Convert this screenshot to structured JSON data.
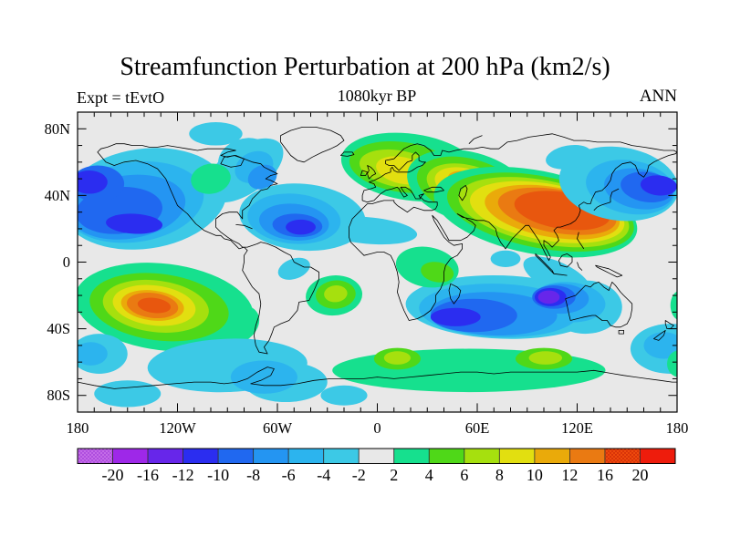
{
  "header": {
    "title": "Streamfunction Perturbation at 200 hPa (km2/s)",
    "subtitle": "1080kyr BP",
    "left_label": "Expt = tEvtO",
    "right_label": "ANN"
  },
  "chart_data": {
    "type": "heatmap",
    "subtype": "filled-contour world map",
    "title": "Streamfunction Perturbation at 200 hPa (km2/s)",
    "subtitle": "1080kyr BP",
    "annotations": {
      "experiment": "Expt = tEvtO",
      "season": "ANN"
    },
    "units": "km2/s",
    "lon_axis": {
      "range": [
        -180,
        180
      ],
      "tick_values": [
        -180,
        -120,
        -60,
        0,
        60,
        120,
        180
      ],
      "tick_labels": [
        "180",
        "120W",
        "60W",
        "0",
        "60E",
        "120E",
        "180"
      ],
      "minor_step": 10
    },
    "lat_axis": {
      "range": [
        -90,
        90
      ],
      "tick_values": [
        80,
        40,
        0,
        -40,
        -80
      ],
      "tick_labels": [
        "80N",
        "40N",
        "0",
        "40S",
        "80S"
      ],
      "minor_step": 10
    },
    "colorbar": {
      "levels": [
        -20,
        -16,
        -12,
        -10,
        -8,
        -6,
        -4,
        -2,
        2,
        4,
        6,
        8,
        10,
        12,
        16,
        20
      ],
      "labels": [
        "-20",
        "-16",
        "-12",
        "-10",
        "-8",
        "-6",
        "-4",
        "-2",
        "2",
        "4",
        "6",
        "8",
        "10",
        "12",
        "16",
        "20"
      ],
      "colors": [
        "#c46ce8",
        "#9e28e8",
        "#6726ea",
        "#2b2df0",
        "#2068f0",
        "#2495f2",
        "#2cb4ee",
        "#3cc9e6",
        "#e8e8e8",
        "#16e08e",
        "#4fd818",
        "#a6e00e",
        "#e2df10",
        "#eaaa0a",
        "#ea7a12",
        "#ee4a0c",
        "#ee1c0c"
      ],
      "hatched_segment_indices": [
        0,
        15
      ],
      "hatch_dot_colors": [
        "#8f22d0",
        "#b81004"
      ],
      "map_core_color": "#e8570e",
      "background_level_color": "#e8e8e8"
    },
    "anomaly_centers": [
      {
        "region": "North Pacific",
        "lon": -150,
        "lat": 33,
        "sign": "negative",
        "approx_extreme": -12
      },
      {
        "region": "Subtropical North Atlantic",
        "lon": -47,
        "lat": 22,
        "sign": "negative",
        "approx_extreme": -12
      },
      {
        "region": "Central Canada",
        "lon": -100,
        "lat": 50,
        "sign": "positive",
        "approx_extreme": 4
      },
      {
        "region": "Northern Europe",
        "lon": 15,
        "lat": 56,
        "sign": "positive",
        "approx_extreme": 10
      },
      {
        "region": "Central and East Asia",
        "lon": 111,
        "lat": 31,
        "sign": "positive",
        "approx_extreme": 18
      },
      {
        "region": "Northwest Pacific",
        "lon": 168,
        "lat": 45,
        "sign": "negative",
        "approx_extreme": -12
      },
      {
        "region": "Equatorial Africa",
        "lon": 35,
        "lat": -5,
        "sign": "positive",
        "approx_extreme": 6
      },
      {
        "region": "Southwest Indian Ocean",
        "lon": 48,
        "lat": -33,
        "sign": "negative",
        "approx_extreme": -12
      },
      {
        "region": "West of Australia",
        "lon": 103,
        "lat": -21,
        "sign": "negative",
        "approx_extreme": -14
      },
      {
        "region": "South Pacific",
        "lon": -133,
        "lat": -26,
        "sign": "positive",
        "approx_extreme": 18
      },
      {
        "region": "South Atlantic",
        "lon": -25,
        "lat": -19,
        "sign": "positive",
        "approx_extreme": 8
      },
      {
        "region": "Antarctic circumpolar band",
        "lon": 55,
        "lat": -62,
        "sign": "positive",
        "approx_extreme": 8
      }
    ],
    "field_blobs": [
      [
        -140,
        38,
        50,
        30,
        -8,
        7
      ],
      [
        -80,
        55,
        27,
        14,
        -35,
        7
      ],
      [
        -146,
        36,
        42,
        24,
        -8,
        6
      ],
      [
        -150,
        33,
        35,
        19,
        -8,
        5
      ],
      [
        -155,
        31,
        26,
        14,
        -5,
        4
      ],
      [
        -168,
        47,
        16,
        11,
        0,
        4
      ],
      [
        -146,
        23,
        17,
        6,
        3,
        3
      ],
      [
        -173,
        48,
        11,
        7,
        0,
        3
      ],
      [
        -80,
        62,
        16,
        12,
        -20,
        7
      ],
      [
        -74,
        57,
        12,
        9,
        -25,
        6
      ],
      [
        -69,
        51,
        9,
        7,
        -25,
        5
      ],
      [
        -97,
        77,
        16,
        7,
        0,
        7
      ],
      [
        -45,
        27,
        38,
        20,
        5,
        7
      ],
      [
        -6,
        19,
        30,
        8,
        5,
        7
      ],
      [
        -50,
        26,
        28,
        15,
        5,
        6
      ],
      [
        -50,
        24,
        21,
        11,
        5,
        5
      ],
      [
        -48,
        22,
        15,
        7,
        3,
        4
      ],
      [
        -46,
        21,
        9,
        4.5,
        0,
        3
      ],
      [
        -100,
        50,
        12,
        9,
        -10,
        9
      ],
      [
        20,
        57,
        42,
        20,
        8,
        9
      ],
      [
        15,
        57,
        32,
        15,
        8,
        10
      ],
      [
        13,
        56,
        24,
        11,
        10,
        11
      ],
      [
        15,
        55,
        16,
        8,
        12,
        12
      ],
      [
        55,
        45,
        38,
        21,
        15,
        9
      ],
      [
        55,
        45,
        32,
        17,
        15,
        10
      ],
      [
        55,
        45,
        26,
        13,
        15,
        11
      ],
      [
        54,
        46,
        20,
        10,
        15,
        12
      ],
      [
        55,
        48,
        13,
        6,
        15,
        13
      ],
      [
        95,
        30,
        62,
        25,
        11,
        9
      ],
      [
        98,
        30,
        57,
        21.5,
        11,
        10
      ],
      [
        100,
        30,
        52,
        19,
        11,
        11
      ],
      [
        102,
        30,
        47,
        17,
        10,
        12
      ],
      [
        105,
        30,
        41,
        15,
        10,
        13
      ],
      [
        108,
        30.5,
        36,
        13,
        10,
        14
      ],
      [
        111,
        31,
        29,
        11,
        9,
        15
      ],
      [
        145,
        47,
        36,
        22,
        8,
        7
      ],
      [
        115,
        63,
        14,
        7,
        -10,
        7
      ],
      [
        152,
        45,
        27,
        16,
        10,
        6
      ],
      [
        157,
        44,
        21,
        12,
        10,
        5
      ],
      [
        162,
        45,
        16,
        9,
        8,
        4
      ],
      [
        169,
        46,
        11,
        6,
        5,
        3
      ],
      [
        75,
        -27,
        58,
        19,
        2,
        7
      ],
      [
        125,
        -27,
        22,
        16,
        0,
        7
      ],
      [
        108,
        -9,
        22,
        9,
        25,
        7
      ],
      [
        73,
        -29,
        48,
        16,
        2,
        6
      ],
      [
        115,
        -24,
        22,
        12,
        5,
        6
      ],
      [
        70,
        -31,
        38,
        13,
        2,
        5
      ],
      [
        110,
        -22,
        17,
        9,
        0,
        5
      ],
      [
        58,
        -32,
        26,
        10,
        0,
        4
      ],
      [
        106,
        -21,
        13,
        7,
        0,
        4
      ],
      [
        47,
        -33,
        15,
        5.5,
        0,
        3
      ],
      [
        104,
        -21,
        9.5,
        5.5,
        0,
        3
      ],
      [
        103,
        -21,
        6.5,
        4,
        0,
        2
      ],
      [
        30,
        -3,
        19,
        12,
        10,
        9
      ],
      [
        36,
        -6,
        10,
        6,
        10,
        10
      ],
      [
        77,
        2,
        9,
        5,
        0,
        7
      ],
      [
        -128,
        -27,
        54,
        26,
        7,
        9
      ],
      [
        -85,
        -38,
        15,
        11,
        -30,
        9
      ],
      [
        -131,
        -27,
        42,
        20,
        7,
        10
      ],
      [
        -133,
        -26.5,
        32,
        15.5,
        7,
        11
      ],
      [
        -134,
        -26,
        25,
        12,
        7,
        12
      ],
      [
        -135,
        -26,
        19,
        9,
        7,
        13
      ],
      [
        -135,
        -26,
        15.5,
        7.5,
        7,
        14
      ],
      [
        -134,
        -26,
        10,
        4.5,
        7,
        15
      ],
      [
        -26,
        -20,
        17,
        12,
        -5,
        9
      ],
      [
        -25,
        -19.5,
        12,
        8.5,
        -5,
        10
      ],
      [
        -25,
        -19,
        7,
        5,
        -5,
        11
      ],
      [
        -50,
        -4,
        10,
        6,
        -20,
        7
      ],
      [
        176,
        -52,
        24,
        15,
        0,
        7
      ],
      [
        -167,
        -55,
        17,
        12,
        0,
        7
      ],
      [
        172,
        -50,
        12,
        8,
        0,
        6
      ],
      [
        -172,
        -55,
        10,
        7,
        0,
        6
      ],
      [
        -90,
        -62,
        48,
        16,
        -2,
        7
      ],
      [
        -55,
        -72,
        25,
        12,
        0,
        7
      ],
      [
        -68,
        -69,
        20,
        10,
        0,
        6
      ],
      [
        -150,
        -79,
        20,
        8,
        0,
        7
      ],
      [
        -20,
        -80,
        14,
        6,
        0,
        7
      ],
      [
        55,
        -65,
        82,
        13,
        0,
        9
      ],
      [
        12,
        -58,
        14,
        6.5,
        0,
        10
      ],
      [
        100,
        -58,
        17,
        6.5,
        0,
        10
      ],
      [
        12,
        -57.5,
        8,
        4,
        0,
        11
      ],
      [
        101,
        -57.5,
        10,
        4,
        0,
        11
      ],
      [
        181,
        -61,
        7,
        8,
        0,
        9
      ],
      [
        182,
        -26,
        6,
        9,
        0,
        9
      ]
    ]
  }
}
